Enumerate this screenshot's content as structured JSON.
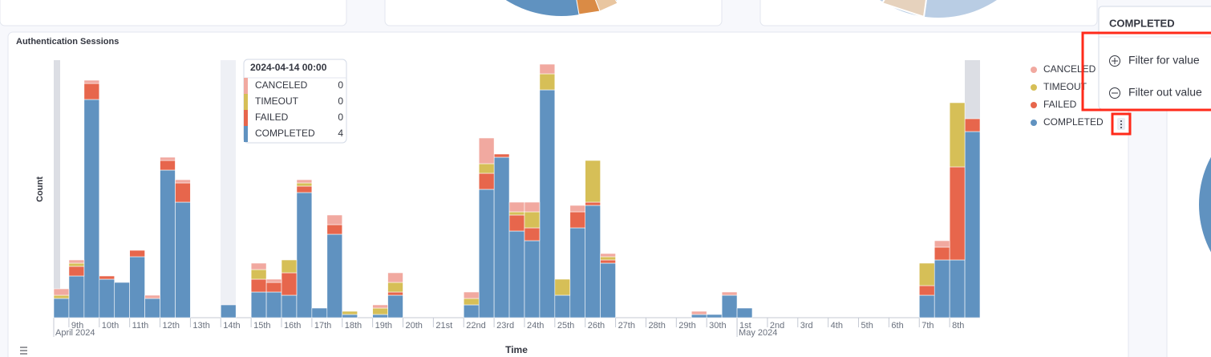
{
  "chart_data": {
    "type": "bar",
    "stacked": true,
    "title": "Authentication Sessions",
    "x_label": "Time",
    "y_label": "Count",
    "categories": [
      "2024-04-08 12:00",
      "2024-04-09 00:00",
      "2024-04-09 12:00",
      "2024-04-10 00:00",
      "2024-04-10 12:00",
      "2024-04-11 00:00",
      "2024-04-11 12:00",
      "2024-04-12 00:00",
      "2024-04-12 12:00",
      "2024-04-13 00:00",
      "2024-04-13 12:00",
      "2024-04-14 00:00",
      "2024-04-14 12:00",
      "2024-04-15 00:00",
      "2024-04-15 12:00",
      "2024-04-16 00:00",
      "2024-04-16 12:00",
      "2024-04-17 00:00",
      "2024-04-17 12:00",
      "2024-04-18 00:00",
      "2024-04-18 12:00",
      "2024-04-19 00:00",
      "2024-04-19 12:00",
      "2024-04-20 00:00",
      "2024-04-20 12:00",
      "2024-04-21 00:00",
      "2024-04-21 12:00",
      "2024-04-22 00:00",
      "2024-04-22 12:00",
      "2024-04-23 00:00",
      "2024-04-23 12:00",
      "2024-04-24 00:00",
      "2024-04-24 12:00",
      "2024-04-25 00:00",
      "2024-04-25 12:00",
      "2024-04-26 00:00",
      "2024-04-26 12:00",
      "2024-04-27 00:00",
      "2024-04-27 12:00",
      "2024-04-28 00:00",
      "2024-04-28 12:00",
      "2024-04-29 00:00",
      "2024-04-29 12:00",
      "2024-04-30 00:00",
      "2024-04-30 12:00",
      "2024-05-01 00:00",
      "2024-05-01 12:00",
      "2024-05-02 00:00",
      "2024-05-02 12:00",
      "2024-05-03 00:00",
      "2024-05-03 12:00",
      "2024-05-04 00:00",
      "2024-05-04 12:00",
      "2024-05-05 00:00",
      "2024-05-05 12:00",
      "2024-05-06 00:00",
      "2024-05-06 12:00",
      "2024-05-07 00:00",
      "2024-05-07 12:00",
      "2024-05-08 00:00",
      "2024-05-08 12:00"
    ],
    "series": [
      {
        "name": "COMPLETED",
        "color": "#6092c0",
        "values": [
          6,
          13,
          68,
          12,
          11,
          19,
          6,
          46,
          36,
          0,
          0,
          4,
          0,
          8,
          8,
          7,
          39,
          3,
          26,
          1,
          0,
          1,
          7,
          0,
          0,
          0,
          0,
          4,
          40,
          50,
          27,
          24,
          71,
          7,
          28,
          35,
          17,
          0,
          0,
          0,
          0,
          0,
          1,
          1,
          7,
          3,
          0,
          0,
          0,
          0,
          0,
          0,
          0,
          0,
          0,
          0,
          0,
          7,
          18,
          18,
          58
        ]
      },
      {
        "name": "FAILED",
        "color": "#e7664c",
        "values": [
          0,
          3,
          5,
          1,
          0,
          2,
          0,
          3,
          6,
          0,
          0,
          0,
          0,
          4,
          3,
          7,
          2,
          0,
          3,
          0,
          0,
          0,
          1,
          0,
          0,
          0,
          0,
          0,
          5,
          1,
          5,
          4,
          0,
          0,
          5,
          1,
          1,
          0,
          0,
          0,
          0,
          0,
          0,
          0,
          0,
          0,
          0,
          0,
          0,
          0,
          0,
          0,
          0,
          0,
          0,
          0,
          0,
          3,
          4,
          29,
          4
        ]
      },
      {
        "name": "TIMEOUT",
        "color": "#d6bf57",
        "values": [
          1,
          1,
          0,
          0,
          0,
          0,
          0,
          0,
          0,
          0,
          0,
          0,
          0,
          3,
          0,
          4,
          1,
          0,
          0,
          1,
          0,
          2,
          3,
          0,
          0,
          0,
          0,
          2,
          3,
          0,
          1,
          5,
          5,
          5,
          0,
          13,
          1,
          0,
          0,
          0,
          0,
          0,
          0,
          0,
          0,
          0,
          0,
          0,
          0,
          0,
          0,
          0,
          0,
          0,
          0,
          0,
          0,
          7,
          0,
          20,
          0
        ]
      },
      {
        "name": "CANCELED",
        "color": "#f1a9a0",
        "values": [
          2,
          1,
          1,
          0,
          0,
          0,
          1,
          1,
          1,
          0,
          0,
          0,
          0,
          2,
          1,
          0,
          1,
          0,
          3,
          0,
          0,
          1,
          3,
          0,
          0,
          0,
          0,
          2,
          8,
          0,
          3,
          3,
          3,
          0,
          2,
          0,
          1,
          0,
          0,
          0,
          0,
          0,
          1,
          0,
          1,
          0,
          0,
          0,
          0,
          0,
          0,
          0,
          0,
          0,
          0,
          0,
          0,
          0,
          2,
          0,
          0
        ]
      }
    ],
    "ylim": [
      0,
      80
    ],
    "xticks": [
      {
        "value": "2024-04-09 00:00",
        "label": "9th"
      },
      {
        "value": "2024-04-10 00:00",
        "label": "10th"
      },
      {
        "value": "2024-04-11 00:00",
        "label": "11th"
      },
      {
        "value": "2024-04-12 00:00",
        "label": "12th"
      },
      {
        "value": "2024-04-13 00:00",
        "label": "13th"
      },
      {
        "value": "2024-04-14 00:00",
        "label": "14th"
      },
      {
        "value": "2024-04-15 00:00",
        "label": "15th"
      },
      {
        "value": "2024-04-16 00:00",
        "label": "16th"
      },
      {
        "value": "2024-04-17 00:00",
        "label": "17th"
      },
      {
        "value": "2024-04-18 00:00",
        "label": "18th"
      },
      {
        "value": "2024-04-19 00:00",
        "label": "19th"
      },
      {
        "value": "2024-04-20 00:00",
        "label": "20th"
      },
      {
        "value": "2024-04-21 00:00",
        "label": "21st"
      },
      {
        "value": "2024-04-22 00:00",
        "label": "22nd"
      },
      {
        "value": "2024-04-23 00:00",
        "label": "23rd"
      },
      {
        "value": "2024-04-24 00:00",
        "label": "24th"
      },
      {
        "value": "2024-04-25 00:00",
        "label": "25th"
      },
      {
        "value": "2024-04-26 00:00",
        "label": "26th"
      },
      {
        "value": "2024-04-27 00:00",
        "label": "27th"
      },
      {
        "value": "2024-04-28 00:00",
        "label": "28th"
      },
      {
        "value": "2024-04-29 00:00",
        "label": "29th"
      },
      {
        "value": "2024-04-30 00:00",
        "label": "30th"
      },
      {
        "value": "2024-05-01 00:00",
        "label": "1st"
      },
      {
        "value": "2024-05-02 00:00",
        "label": "2nd"
      },
      {
        "value": "2024-05-03 00:00",
        "label": "3rd"
      },
      {
        "value": "2024-05-04 00:00",
        "label": "4th"
      },
      {
        "value": "2024-05-05 00:00",
        "label": "5th"
      },
      {
        "value": "2024-05-06 00:00",
        "label": "6th"
      },
      {
        "value": "2024-05-07 00:00",
        "label": "7th"
      },
      {
        "value": "2024-05-08 00:00",
        "label": "8th"
      }
    ],
    "x_group_labels": [
      {
        "value": "2024-04-08 12:00",
        "label": "April 2024"
      },
      {
        "value": "2024-05-01 00:00",
        "label": "May 2024"
      }
    ],
    "legend": "right"
  },
  "filter_popover": {
    "actions": [
      "Filter for value",
      "Filter out value"
    ]
  }
}
